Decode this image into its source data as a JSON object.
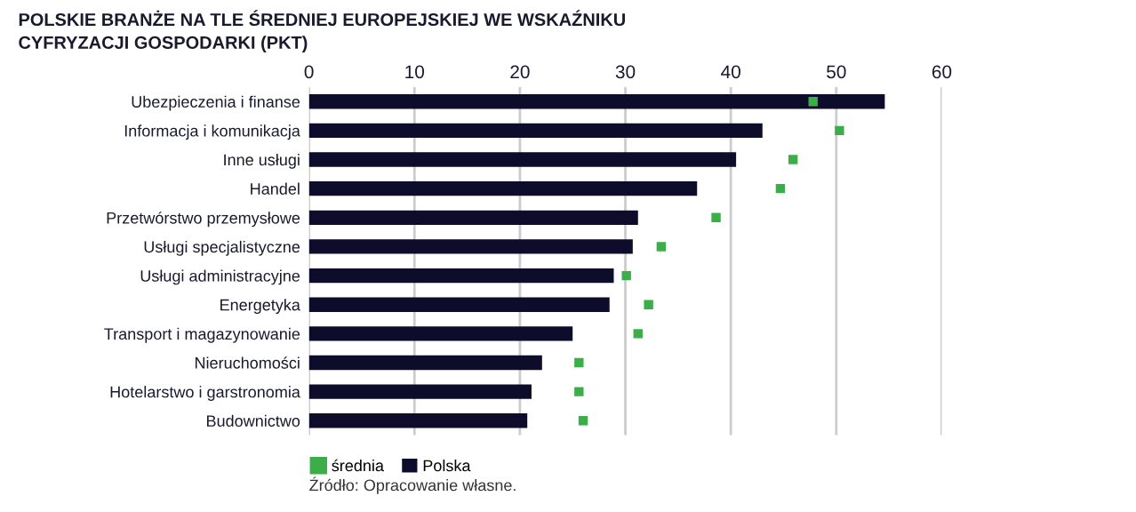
{
  "chart_data": {
    "type": "bar",
    "orientation": "horizontal",
    "title": "POLSKIE BRANŻE NA TLE ŚREDNIEJ EUROPEJSKIEJ WE WSKAŹNIKU\nCYFRYZACJI GOSPODARKI (PKT)",
    "categories": [
      "Ubezpieczenia i finanse",
      "Informacja i komunikacja",
      "Inne usługi",
      "Handel",
      "Przetwórstwo przemysłowe",
      "Usługi specjalistyczne",
      "Usługi administracyjne",
      "Energetyka",
      "Transport i magazynowanie",
      "Nieruchomości",
      "Hotelarstwo i garstronomia",
      "Budownictwo"
    ],
    "series": [
      {
        "name": "średnia",
        "type": "scatter",
        "marker": "square",
        "color": "#3cae49",
        "values": [
          47.8,
          50.3,
          45.9,
          44.7,
          38.6,
          33.4,
          30.1,
          32.2,
          31.2,
          25.6,
          25.6,
          26.0
        ]
      },
      {
        "name": "Polska",
        "color": "#0d0c2b",
        "values": [
          54.6,
          43.0,
          40.5,
          36.8,
          31.2,
          30.7,
          28.9,
          28.5,
          25.0,
          22.1,
          21.1,
          20.7
        ]
      }
    ],
    "xlim": [
      0,
      60
    ],
    "xticks": [
      0,
      10,
      20,
      30,
      40,
      50,
      60
    ],
    "grid": "x",
    "legend": "bottom left",
    "annotations": [
      "Źródło: Opracowanie własne."
    ]
  }
}
